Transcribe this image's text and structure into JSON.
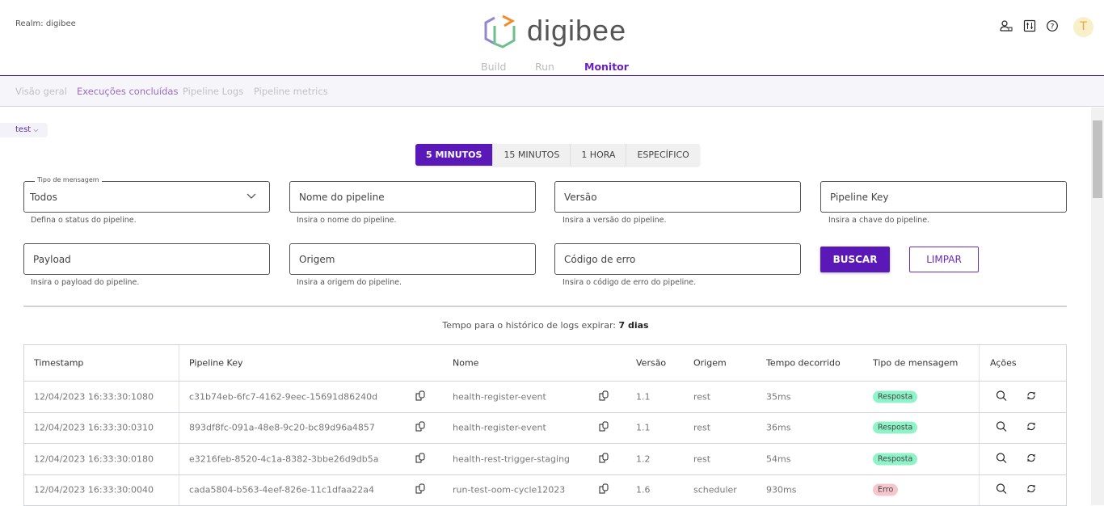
{
  "header": {
    "realm": "Realm: digibee",
    "logo_text": "digibee",
    "avatar_initial": "T",
    "icons": [
      "user-lock-icon",
      "sliders-icon",
      "help-icon"
    ],
    "tabs": [
      {
        "label": "Build"
      },
      {
        "label": "Run"
      },
      {
        "label": "Monitor",
        "active": true
      }
    ]
  },
  "subnav": {
    "items": [
      {
        "label": "Visão geral"
      },
      {
        "label": "Execuções concluídas",
        "active": true
      },
      {
        "label": "Pipeline Logs"
      },
      {
        "label": "Pipeline metrics"
      }
    ]
  },
  "environment": {
    "selected": "test"
  },
  "time_range": {
    "options": [
      "5 MINUTOS",
      "15 MINUTOS",
      "1 HORA",
      "ESPECÍFICO"
    ],
    "selected": "5 MINUTOS"
  },
  "filters": {
    "message_type": {
      "label": "Tipo de mensagem",
      "value": "Todos",
      "help": "Defina o status do pipeline."
    },
    "pipeline_name": {
      "placeholder": "Nome do pipeline",
      "help": "Insira o nome do pipeline."
    },
    "version": {
      "placeholder": "Versão",
      "help": "Insira a versão do pipeline."
    },
    "pipeline_key": {
      "placeholder": "Pipeline Key",
      "help": "Insira a chave do pipeline."
    },
    "payload": {
      "placeholder": "Payload",
      "help": "Insira o payload do pipeline."
    },
    "origin": {
      "placeholder": "Origem",
      "help": "Insira a origem do pipeline."
    },
    "error_code": {
      "placeholder": "Código de erro",
      "help": "Insira o código de erro do pipeline."
    },
    "search_label": "BUSCAR",
    "clear_label": "LIMPAR"
  },
  "expire": {
    "text": "Tempo para o histórico de logs expirar:",
    "value": "7 dias"
  },
  "table": {
    "headers": [
      "Timestamp",
      "Pipeline Key",
      "Nome",
      "Versão",
      "Origem",
      "Tempo decorrido",
      "Tipo de mensagem",
      "Ações"
    ],
    "rows": [
      {
        "timestamp": "12/04/2023 16:33:30:1080",
        "key": "c31b74eb-6fc7-4162-9eec-15691d86240d",
        "name": "health-register-event",
        "version": "1.1",
        "origin": "rest",
        "elapsed": "35ms",
        "type": "Resposta",
        "status": "ok"
      },
      {
        "timestamp": "12/04/2023 16:33:30:0310",
        "key": "893df8fc-091a-48e8-9c20-bc89d96a4857",
        "name": "health-register-event",
        "version": "1.1",
        "origin": "rest",
        "elapsed": "36ms",
        "type": "Resposta",
        "status": "ok"
      },
      {
        "timestamp": "12/04/2023 16:33:30:0180",
        "key": "e3216feb-8520-4c1a-8382-3bbe26d9db5a",
        "name": "health-rest-trigger-staging",
        "version": "1.2",
        "origin": "rest",
        "elapsed": "54ms",
        "type": "Resposta",
        "status": "ok"
      },
      {
        "timestamp": "12/04/2023 16:33:30:0040",
        "key": "cada5804-b563-4eef-826e-11c1dfaa22a4",
        "name": "run-test-oom-cycle12023",
        "version": "1.6",
        "origin": "scheduler",
        "elapsed": "930ms",
        "type": "Erro",
        "status": "err"
      }
    ]
  },
  "colors": {
    "accent": "#5a18b8",
    "success_badge": "#8ff3c9",
    "error_badge": "#f5c6cc"
  }
}
